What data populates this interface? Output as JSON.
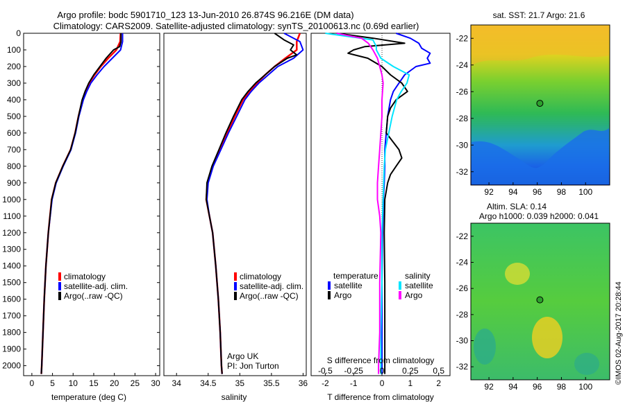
{
  "title_line1": "Argo profile: bodc 5901710_123 13-Jun-2010 26.874S 96.216E (DM data)",
  "title_line2": "Climatology: CARS2009. Satellite-adjusted climatology: synTS_20100613.nc (0.69d earlier)",
  "depth_ticks": [
    "0",
    "100",
    "200",
    "300",
    "400",
    "500",
    "600",
    "700",
    "800",
    "900",
    "1000",
    "1100",
    "1200",
    "1300",
    "1400",
    "1500",
    "1600",
    "1700",
    "1800",
    "1900",
    "2000"
  ],
  "colors": {
    "climatology": "#ff0000",
    "satellite": "#0000ff",
    "argo": "#000000",
    "satellite_s": "#00e5ff",
    "argo_s": "#ff00ff"
  },
  "temperature_panel": {
    "xlabel": "temperature (deg C)",
    "xticks": [
      "0",
      "5",
      "10",
      "15",
      "20",
      "25",
      "30"
    ],
    "legend": [
      "climatology",
      "satellite-adj. clim.",
      "Argo(..raw -QC)"
    ]
  },
  "salinity_panel": {
    "xlabel": "salinity",
    "xticks": [
      "34",
      "34.5",
      "35",
      "35.5",
      "36"
    ],
    "legend": [
      "climatology",
      "satellite-adj. clim.",
      "Argo(..raw -QC)"
    ],
    "note1": "Argo UK",
    "note2": "PI: Jon Turton"
  },
  "difference_panel": {
    "xlabel": "T difference from climatology",
    "xticks": [
      "-2",
      "-1",
      "0",
      "1",
      "2"
    ],
    "top_label": "S difference from climatology",
    "top_ticks": [
      "-0.5",
      "-0.25",
      "0",
      "0.25",
      "0.5"
    ],
    "legend_temp_title": "temperature",
    "legend_sal_title": "salinity",
    "legend_temp": [
      "satellite",
      "Argo"
    ],
    "legend_sal": [
      "satellite",
      "Argo"
    ]
  },
  "map_sst": {
    "title": "sat. SST: 21.7 Argo: 21.6",
    "xticks": [
      "92",
      "94",
      "96",
      "98",
      "100"
    ],
    "yticks": [
      "-22",
      "-24",
      "-26",
      "-28",
      "-30",
      "-32"
    ]
  },
  "map_sla": {
    "title1": "Altim. SLA: 0.14",
    "title2": "Argo h1000: 0.039 h2000: 0.041",
    "xticks": [
      "92",
      "94",
      "96",
      "98",
      "100"
    ],
    "yticks": [
      "-22",
      "-24",
      "-26",
      "-28",
      "-30",
      "-32"
    ]
  },
  "credit": "©IMOS 02-Aug-2017 20:28:44",
  "chart_data": [
    {
      "type": "line",
      "title": "temperature (deg C)",
      "xlabel": "temperature (deg C)",
      "ylabel": "",
      "xlim": [
        -2,
        31
      ],
      "ylim": [
        2060,
        0
      ],
      "series": [
        {
          "name": "climatology",
          "depth": [
            0,
            50,
            100,
            150,
            200,
            250,
            300,
            350,
            400,
            500,
            600,
            700,
            800,
            900,
            1000,
            1200,
            1400,
            1600,
            1800,
            2000,
            2050
          ],
          "values": [
            21.5,
            21.4,
            20.5,
            18.5,
            16.7,
            15.2,
            13.9,
            13,
            12.3,
            11.3,
            10.5,
            9.4,
            7.5,
            5.8,
            4.8,
            4.0,
            3.4,
            3.0,
            2.7,
            2.4,
            2.3
          ]
        },
        {
          "name": "satellite-adj. clim.",
          "depth": [
            0,
            50,
            100,
            150,
            200,
            250,
            300,
            350,
            400,
            500,
            600,
            700,
            800,
            900,
            1000,
            1200,
            1400,
            1600,
            1800,
            2000,
            2050
          ],
          "values": [
            22.0,
            22.0,
            21.5,
            19.5,
            17.5,
            15.8,
            14.3,
            13.3,
            12.5,
            11.4,
            10.6,
            9.5,
            7.6,
            5.9,
            4.9,
            4.0,
            3.4,
            3.0,
            2.7,
            2.4,
            2.3
          ]
        },
        {
          "name": "Argo(..raw -QC)",
          "depth": [
            0,
            50,
            80,
            100,
            150,
            200,
            250,
            300,
            350,
            400,
            500,
            600,
            700,
            800,
            900,
            1000,
            1200,
            1400,
            1600,
            1800,
            2000,
            2050
          ],
          "values": [
            21.6,
            21.6,
            21.3,
            19.8,
            18.0,
            16.5,
            15.0,
            13.8,
            12.9,
            12.2,
            11.3,
            10.5,
            9.4,
            7.5,
            5.8,
            4.8,
            4.0,
            3.4,
            3.0,
            2.7,
            2.4,
            2.3
          ]
        }
      ]
    },
    {
      "type": "line",
      "title": "salinity",
      "xlabel": "salinity",
      "ylabel": "",
      "xlim": [
        33.8,
        36.05
      ],
      "ylim": [
        2060,
        0
      ],
      "series": [
        {
          "name": "climatology",
          "depth": [
            0,
            50,
            100,
            150,
            200,
            250,
            300,
            350,
            400,
            500,
            600,
            700,
            800,
            900,
            1000,
            1100,
            1200,
            1400,
            1600,
            1800,
            2000,
            2050
          ],
          "values": [
            35.95,
            35.9,
            35.9,
            35.72,
            35.55,
            35.4,
            35.27,
            35.15,
            35.05,
            34.92,
            34.8,
            34.68,
            34.57,
            34.49,
            34.47,
            34.52,
            34.57,
            34.62,
            34.66,
            34.69,
            34.71,
            34.72
          ]
        },
        {
          "name": "satellite-adj. clim.",
          "depth": [
            0,
            50,
            100,
            150,
            200,
            250,
            300,
            350,
            400,
            500,
            600,
            700,
            800,
            900,
            1000,
            1100,
            1200,
            1400,
            1600,
            1800,
            2000,
            2050
          ],
          "values": [
            35.7,
            35.95,
            36.0,
            35.85,
            35.6,
            35.45,
            35.3,
            35.18,
            35.08,
            34.95,
            34.82,
            34.7,
            34.58,
            34.5,
            34.48,
            34.52,
            34.57,
            34.62,
            34.66,
            34.69,
            34.71,
            34.72
          ]
        },
        {
          "name": "Argo(..raw -QC)",
          "depth": [
            0,
            40,
            70,
            100,
            130,
            150,
            200,
            250,
            300,
            350,
            400,
            500,
            600,
            700,
            800,
            900,
            1000,
            1100,
            1200,
            1400,
            1600,
            1800,
            2000,
            2050
          ],
          "values": [
            35.55,
            35.7,
            35.85,
            35.8,
            35.9,
            35.75,
            35.55,
            35.4,
            35.25,
            35.13,
            35.03,
            34.9,
            34.78,
            34.67,
            34.56,
            34.48,
            34.47,
            34.52,
            34.57,
            34.62,
            34.66,
            34.69,
            34.71,
            34.72
          ]
        }
      ]
    },
    {
      "type": "line",
      "title": "T difference from climatology",
      "xlabel": "T difference from climatology",
      "ylabel": "",
      "xlim": [
        -2.5,
        2.4
      ],
      "top_axis": {
        "label": "S difference from climatology",
        "lim": [
          -0.625,
          0.6
        ]
      },
      "ylim": [
        2060,
        0
      ],
      "series": [
        {
          "name": "temperature satellite",
          "depth": [
            0,
            30,
            60,
            90,
            120,
            150,
            180,
            200,
            250,
            300,
            350,
            400,
            500,
            600,
            700,
            800,
            900,
            1000,
            1200,
            1500,
            1800,
            2000,
            2050
          ],
          "values": [
            0.5,
            1.0,
            1.3,
            1.4,
            1.7,
            1.6,
            1.7,
            1.2,
            0.8,
            0.6,
            0.4,
            0.3,
            0.2,
            0.15,
            0.1,
            0.1,
            0.08,
            0.05,
            0.02,
            0.0,
            0.0,
            0.0,
            0.0
          ]
        },
        {
          "name": "temperature Argo",
          "depth": [
            0,
            30,
            60,
            80,
            100,
            120,
            150,
            200,
            250,
            300,
            350,
            400,
            450,
            500,
            600,
            700,
            750,
            800,
            850,
            900,
            1000,
            1200,
            1500,
            1800,
            2000,
            2050
          ],
          "values": [
            -1.6,
            -0.3,
            0.8,
            -0.6,
            -1.0,
            -1.2,
            -0.5,
            0.0,
            0.3,
            0.7,
            0.9,
            0.5,
            0.3,
            0.2,
            0.15,
            0.6,
            0.7,
            0.5,
            0.3,
            0.2,
            0.1,
            0.08,
            0.1,
            0.1,
            0.1,
            0.1
          ]
        },
        {
          "name": "salinity satellite",
          "depth": [
            0,
            40,
            80,
            100,
            150,
            200,
            250,
            300,
            350,
            400,
            500,
            600,
            700,
            800,
            1000,
            1200,
            1500,
            1800,
            2000,
            2050
          ],
          "values": [
            -0.5,
            -0.08,
            -0.05,
            -0.05,
            -0.01,
            0.1,
            0.24,
            0.22,
            0.17,
            0.13,
            0.09,
            0.06,
            0.03,
            0.02,
            0.01,
            0.0,
            0.0,
            -0.01,
            -0.01,
            -0.01
          ]
        },
        {
          "name": "salinity Argo",
          "depth": [
            0,
            30,
            60,
            100,
            150,
            200,
            250,
            300,
            400,
            500,
            600,
            700,
            800,
            900,
            1000,
            1100,
            1200,
            1500,
            1800,
            2000,
            2050
          ],
          "values": [
            -0.4,
            -0.18,
            -0.12,
            -0.08,
            -0.04,
            -0.02,
            0.0,
            0.01,
            0.0,
            0.0,
            -0.01,
            -0.02,
            -0.03,
            -0.04,
            -0.04,
            -0.02,
            -0.01,
            -0.02,
            -0.02,
            -0.03,
            -0.03
          ]
        }
      ]
    },
    {
      "type": "heatmap",
      "title": "sat. SST: 21.7 Argo: 21.6",
      "xlim": [
        90.5,
        102
      ],
      "ylim": [
        -33,
        -21
      ],
      "marker": {
        "lon": 96.216,
        "lat": -26.874
      }
    },
    {
      "type": "heatmap",
      "title": "Altim. SLA: 0.14 / Argo h1000: 0.039 h2000: 0.041",
      "xlim": [
        90.5,
        102
      ],
      "ylim": [
        -33,
        -21
      ],
      "marker": {
        "lon": 96.216,
        "lat": -26.874
      }
    }
  ]
}
